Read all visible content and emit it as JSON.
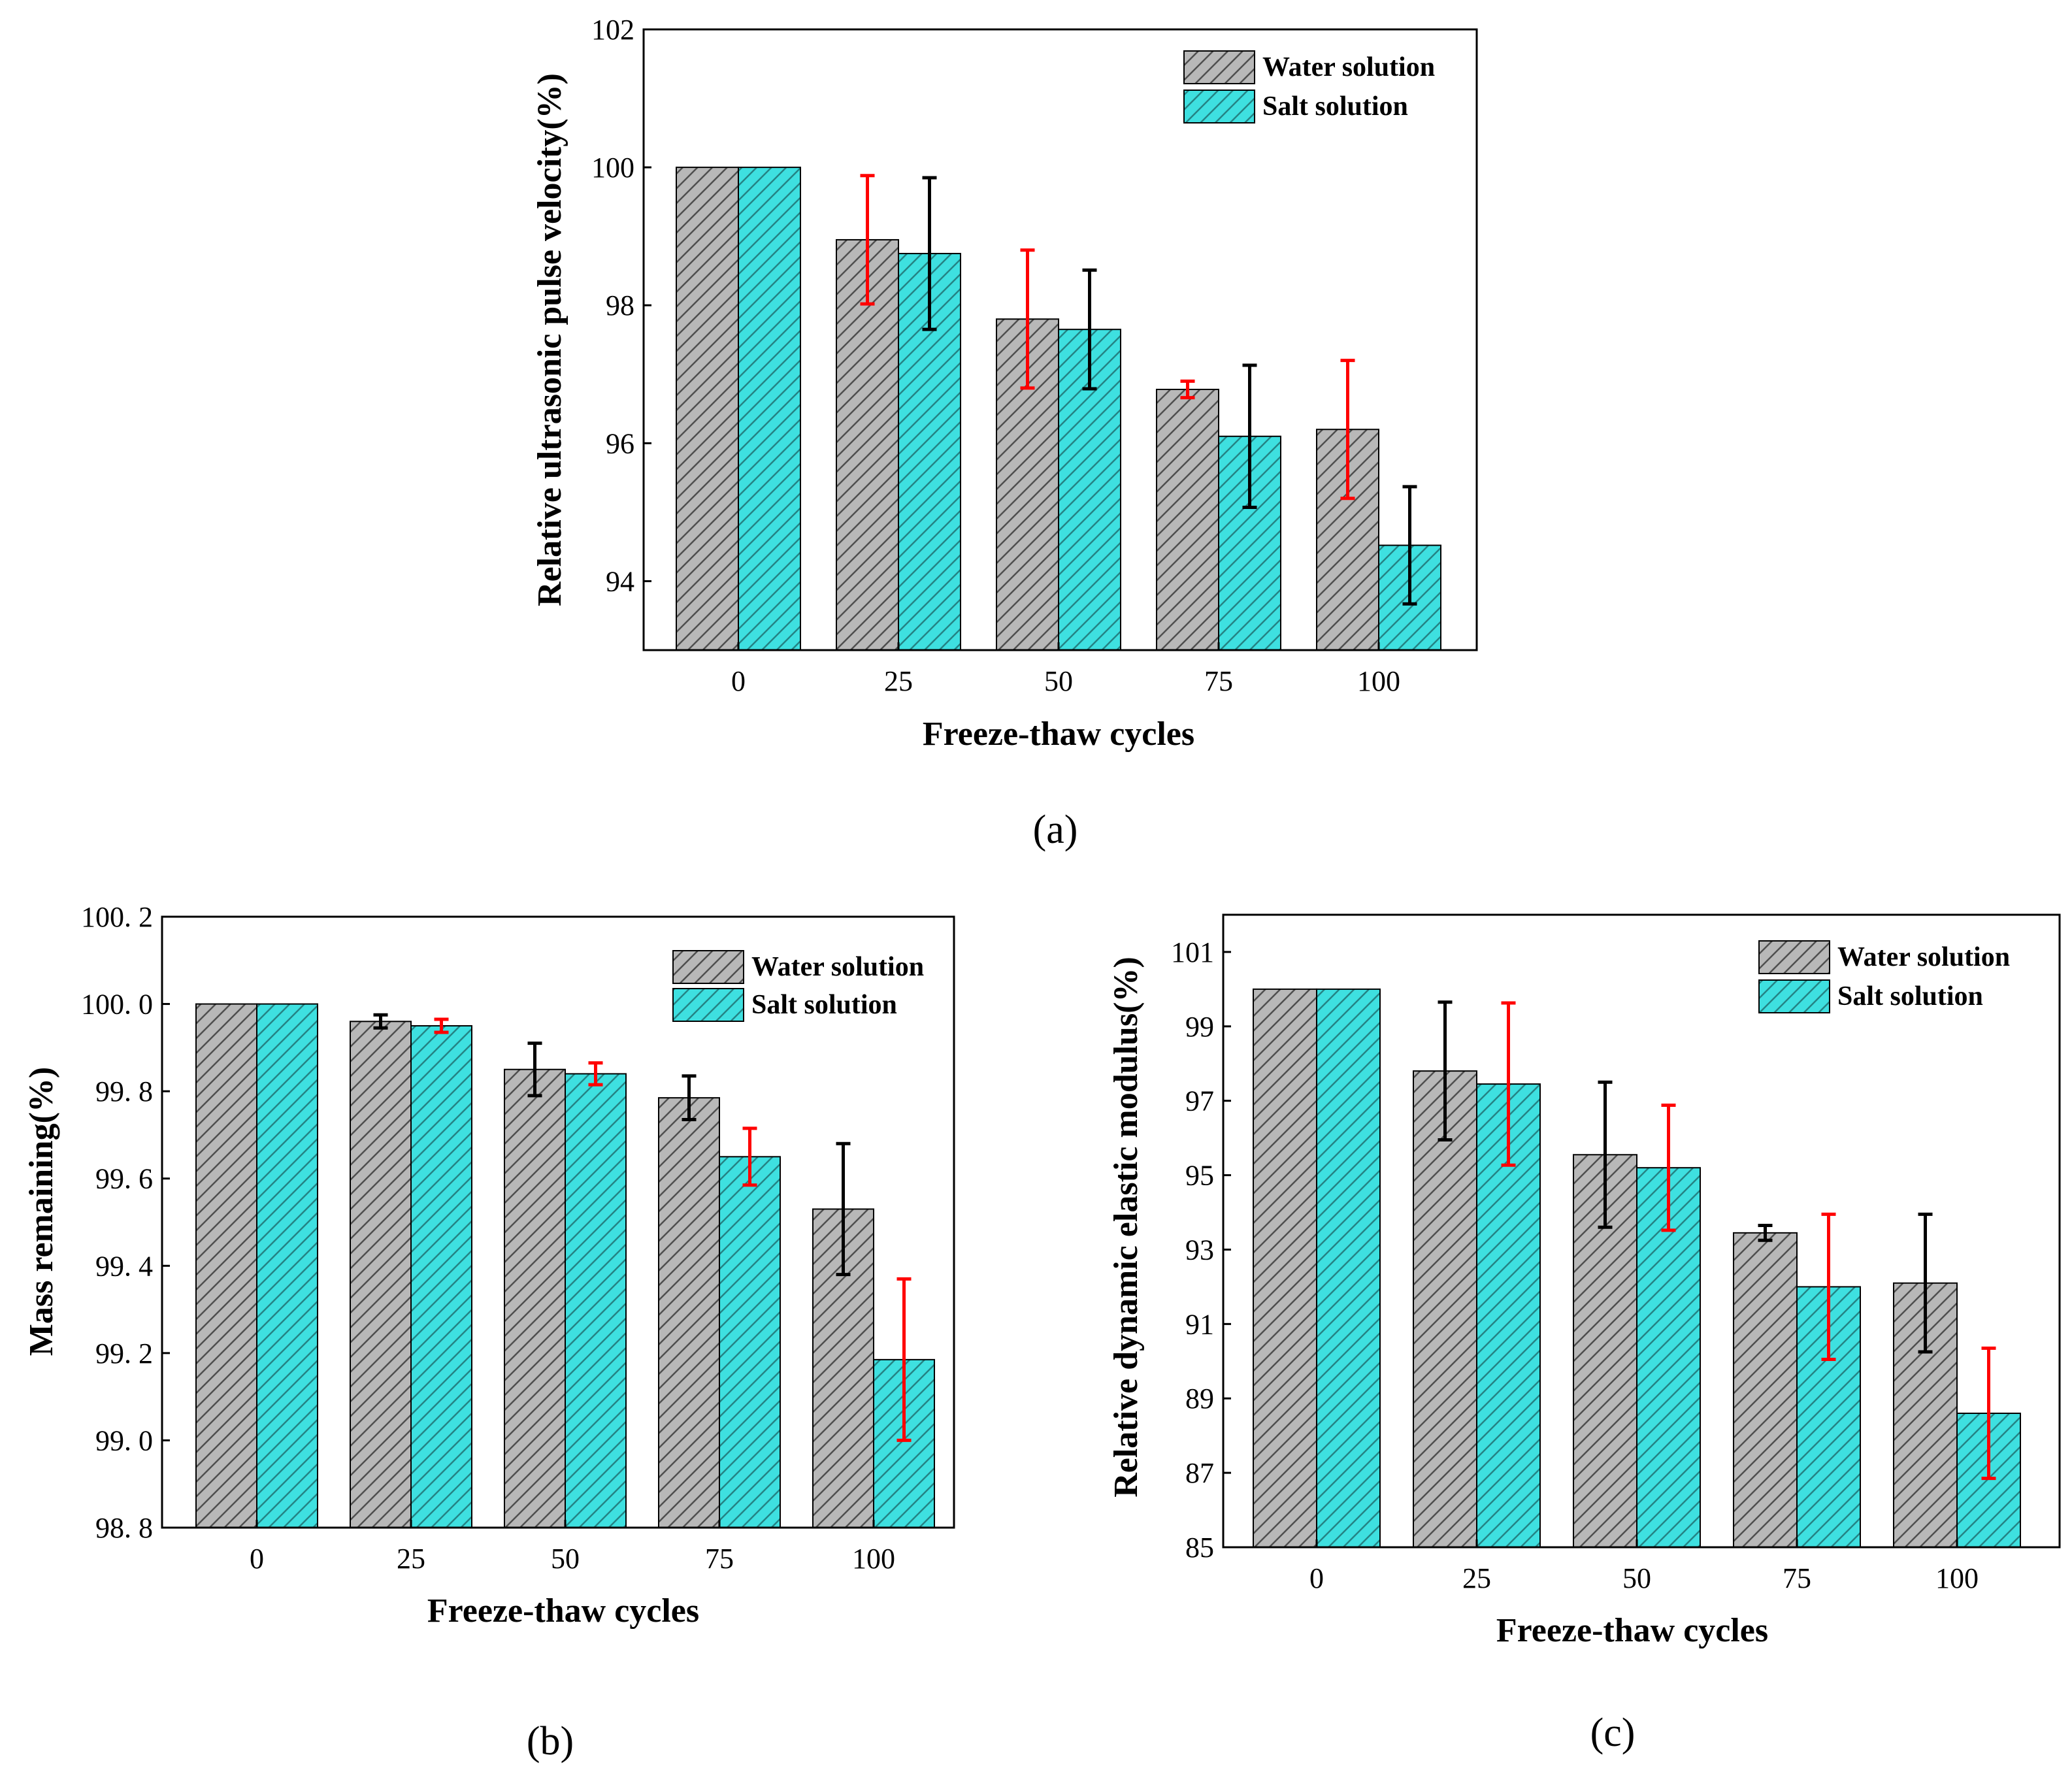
{
  "series_styles": {
    "water": {
      "fill": "#b8b8b8",
      "hatch": "#4a4a4a"
    },
    "salt": {
      "fill": "#3ee0e0",
      "hatch": "#237f80"
    },
    "errorbar_colors": {
      "black": "#000000",
      "red": "#ff0000"
    }
  },
  "chart_data": [
    {
      "id": "a",
      "type": "bar",
      "panel_label": "(a)",
      "xlabel": "Freeze-thaw cycles",
      "ylabel": "Relative ultrasonic pulse velocity(%)",
      "ylim": [
        93,
        102
      ],
      "yticks": [
        94,
        96,
        98,
        100,
        102
      ],
      "ytick_labels": [
        "94",
        "96",
        "98",
        "100",
        "102"
      ],
      "categories": [
        "0",
        "25",
        "50",
        "75",
        "100"
      ],
      "legend_position": "top-right",
      "series": [
        {
          "name": "Water solution",
          "style": "water",
          "values": [
            100,
            98.95,
            97.8,
            96.78,
            96.2
          ],
          "errors": [
            null,
            0.93,
            1.0,
            0.12,
            1.0
          ],
          "error_colors": [
            null,
            "red",
            "red",
            "red",
            "red"
          ]
        },
        {
          "name": "Salt solution",
          "style": "salt",
          "values": [
            100,
            98.75,
            97.65,
            96.1,
            94.52
          ],
          "errors": [
            null,
            1.1,
            0.86,
            1.03,
            0.85
          ],
          "error_colors": [
            null,
            "black",
            "black",
            "black",
            "black"
          ]
        }
      ]
    },
    {
      "id": "b",
      "type": "bar",
      "panel_label": "(b)",
      "xlabel": "Freeze-thaw cycles",
      "ylabel": "Mass remaining(%)",
      "ylim": [
        98.8,
        100.2
      ],
      "yticks": [
        98.8,
        99.0,
        99.2,
        99.4,
        99.6,
        99.8,
        100.0,
        100.2
      ],
      "ytick_labels": [
        "98. 8",
        "99. 0",
        "99. 2",
        "99. 4",
        "99. 6",
        "99. 8",
        "100. 0",
        "100. 2"
      ],
      "categories": [
        "0",
        "25",
        "50",
        "75",
        "100"
      ],
      "legend_position": "top-right",
      "series": [
        {
          "name": "Water solution",
          "style": "water",
          "values": [
            100,
            99.96,
            99.85,
            99.785,
            99.53
          ],
          "errors": [
            null,
            0.015,
            0.06,
            0.05,
            0.15
          ],
          "error_colors": [
            null,
            "black",
            "black",
            "black",
            "black"
          ]
        },
        {
          "name": "Salt solution",
          "style": "salt",
          "values": [
            100,
            99.95,
            99.84,
            99.65,
            99.185
          ],
          "errors": [
            null,
            0.015,
            0.025,
            0.065,
            0.185
          ],
          "error_colors": [
            null,
            "red",
            "red",
            "red",
            "red"
          ]
        }
      ]
    },
    {
      "id": "c",
      "type": "bar",
      "panel_label": "(c)",
      "xlabel": "Freeze-thaw cycles",
      "ylabel": "Relative dynamic elastic modulus(%)",
      "ylim": [
        85,
        102
      ],
      "yticks": [
        85,
        87,
        89,
        91,
        93,
        95,
        97,
        99,
        101
      ],
      "ytick_labels": [
        "85",
        "87",
        "89",
        "91",
        "93",
        "95",
        "97",
        "99",
        "101"
      ],
      "categories": [
        "0",
        "25",
        "50",
        "75",
        "100"
      ],
      "legend_position": "top-right",
      "series": [
        {
          "name": "Water solution",
          "style": "water",
          "values": [
            100,
            97.8,
            95.55,
            93.45,
            92.1
          ],
          "errors": [
            null,
            1.85,
            1.95,
            0.2,
            1.85
          ],
          "error_colors": [
            null,
            "black",
            "black",
            "black",
            "black"
          ]
        },
        {
          "name": "Salt solution",
          "style": "salt",
          "values": [
            100,
            97.45,
            95.2,
            92.0,
            88.6
          ],
          "errors": [
            null,
            2.18,
            1.68,
            1.95,
            1.75
          ],
          "error_colors": [
            null,
            "red",
            "red",
            "red",
            "red"
          ]
        }
      ]
    }
  ]
}
